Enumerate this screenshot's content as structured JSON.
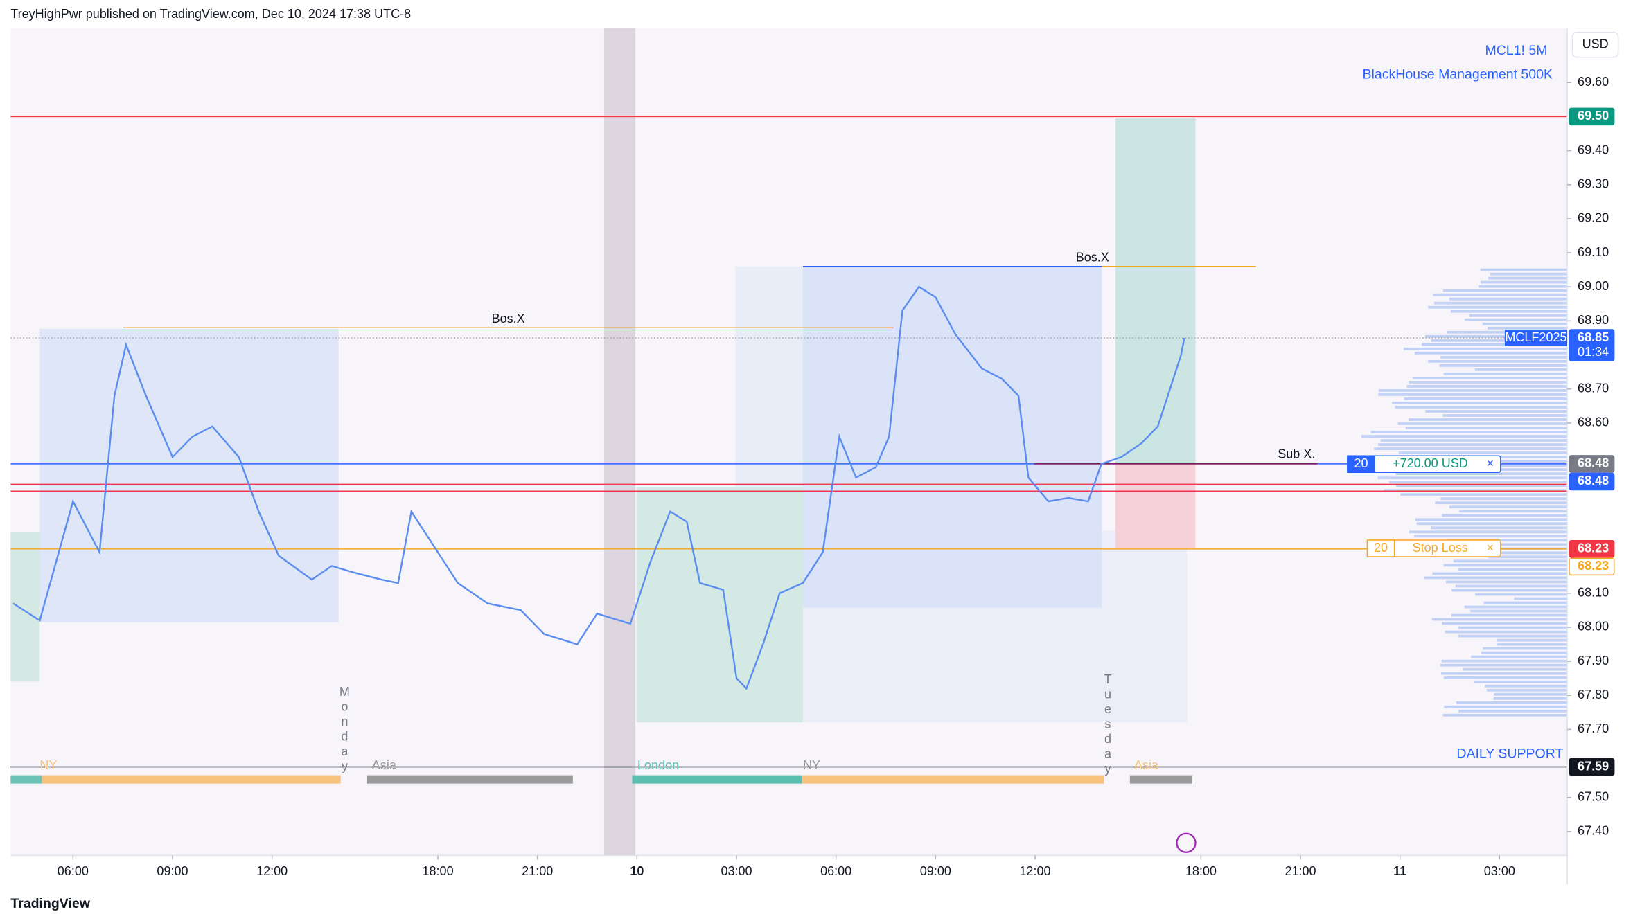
{
  "header": {
    "publisher": "TreyHighPwr published on TradingView.com, Dec 10, 2024 17:38 UTC-8",
    "currency": "USD"
  },
  "footer": {
    "brand": "TradingView"
  },
  "chart_data": {
    "type": "line",
    "symbol": "MCL1! 5M",
    "subtitle": "BlackHouse Management 500K",
    "x": [
      -1.8,
      -1.0,
      0,
      0.8,
      1.25,
      1.6,
      2.2,
      3.0,
      3.6,
      4.2,
      5.0,
      5.6,
      6.2,
      7.2,
      7.8,
      8.5,
      9.3,
      9.8,
      10.2,
      11.0,
      11.6,
      12.5,
      13.5,
      14.2,
      15.2,
      15.8,
      16.8,
      17.4,
      18.0,
      18.5,
      18.9,
      19.6,
      20.0,
      20.3,
      20.8,
      21.3,
      22.0,
      22.6,
      23.1,
      23.6,
      24.2,
      24.6,
      25.0,
      25.5,
      26.0,
      26.6,
      27.4,
      28.0,
      28.5,
      28.8,
      29.4,
      30.0,
      30.6,
      31.0,
      31.6,
      32.2,
      32.7,
      33.0,
      33.4,
      33.5
    ],
    "series": [
      {
        "name": "MCLF2025",
        "color": "#5b8def",
        "values": [
          68.07,
          68.02,
          68.37,
          68.22,
          68.68,
          68.83,
          68.68,
          68.5,
          68.56,
          68.59,
          68.5,
          68.34,
          68.21,
          68.14,
          68.18,
          68.16,
          68.14,
          68.13,
          68.34,
          68.22,
          68.13,
          68.07,
          68.05,
          67.98,
          67.95,
          68.04,
          68.01,
          68.19,
          68.34,
          68.31,
          68.13,
          68.11,
          67.85,
          67.82,
          67.95,
          68.1,
          68.13,
          68.22,
          68.56,
          68.44,
          68.47,
          68.56,
          68.93,
          69.0,
          68.97,
          68.86,
          68.76,
          68.73,
          68.68,
          68.44,
          68.37,
          68.38,
          68.37,
          68.48,
          68.5,
          68.54,
          68.59,
          68.68,
          68.8,
          68.85
        ]
      }
    ],
    "xlim": [
      -1.88,
      45.04
    ],
    "xticks": [
      {
        "value": 0,
        "label": "06:00"
      },
      {
        "value": 3,
        "label": "09:00"
      },
      {
        "value": 6,
        "label": "12:00"
      },
      {
        "value": 11,
        "label": "18:00"
      },
      {
        "value": 14,
        "label": "21:00"
      },
      {
        "value": 17,
        "label": "10"
      },
      {
        "value": 20,
        "label": "03:00"
      },
      {
        "value": 23,
        "label": "06:00"
      },
      {
        "value": 26,
        "label": "09:00"
      },
      {
        "value": 29,
        "label": "12:00"
      },
      {
        "value": 34,
        "label": "18:00"
      },
      {
        "value": 37,
        "label": "21:00"
      },
      {
        "value": 40,
        "label": "11"
      },
      {
        "value": 43,
        "label": "03:00"
      }
    ],
    "ylim": [
      67.33,
      69.76
    ],
    "yticks": [
      {
        "value": 69.6,
        "label": "69.60"
      },
      {
        "value": 69.4,
        "label": "69.40"
      },
      {
        "value": 69.3,
        "label": "69.30"
      },
      {
        "value": 69.2,
        "label": "69.20"
      },
      {
        "value": 69.1,
        "label": "69.10"
      },
      {
        "value": 69.0,
        "label": "69.00"
      },
      {
        "value": 68.9,
        "label": "68.90"
      },
      {
        "value": 68.7,
        "label": "68.70"
      },
      {
        "value": 68.6,
        "label": "68.60"
      },
      {
        "value": 68.1,
        "label": "68.10"
      },
      {
        "value": 68.0,
        "label": "68.00"
      },
      {
        "value": 67.9,
        "label": "67.90"
      },
      {
        "value": 67.8,
        "label": "67.80"
      },
      {
        "value": 67.7,
        "label": "67.70"
      },
      {
        "value": 67.5,
        "label": "67.50"
      },
      {
        "value": 67.4,
        "label": "67.40"
      }
    ],
    "levels": [
      {
        "value": 69.5,
        "color": "#f23645"
      },
      {
        "value": 69.06,
        "color": "#2962ff"
      },
      {
        "value": 68.88,
        "color": "#f5a623"
      },
      {
        "value": 68.85,
        "color": "#9598a1"
      },
      {
        "value": 68.48,
        "color": "#2962ff"
      },
      {
        "value": 68.48,
        "color": "#880e4f"
      },
      {
        "value": 68.42,
        "color": "#f23645"
      },
      {
        "value": 68.4,
        "color": "#f23645"
      },
      {
        "value": 68.23,
        "color": "#f5a623"
      },
      {
        "value": 67.59,
        "color": "#131722"
      }
    ],
    "price_labels": [
      {
        "value": 69.5,
        "label": "69.50",
        "color": "#089981"
      },
      {
        "value": 68.85,
        "label": "68.85",
        "color": "#2962ff"
      },
      {
        "value": 68.48,
        "label": "68.48",
        "color": "#787b86"
      },
      {
        "value": 68.48,
        "label": "68.48",
        "color": "#2962ff"
      },
      {
        "value": 68.23,
        "label": "68.23",
        "color": "#f23645"
      },
      {
        "value": 68.23,
        "label": "68.23",
        "color": "#f5a623"
      },
      {
        "value": 67.59,
        "label": "67.59",
        "color": "#131722"
      }
    ],
    "countdown": "01:34",
    "annotations": [
      "Bos.X",
      "Bos.X",
      "Sub X.",
      "DAILY SUPPORT"
    ],
    "orders": [
      {
        "qty": 20,
        "label": "+720.00 USD"
      },
      {
        "qty": 20,
        "label": "Stop Loss"
      }
    ],
    "sessions": [
      "NY",
      "Asia",
      "London",
      "NY",
      "Asia"
    ],
    "days": [
      "Monday",
      "Tuesday"
    ]
  }
}
